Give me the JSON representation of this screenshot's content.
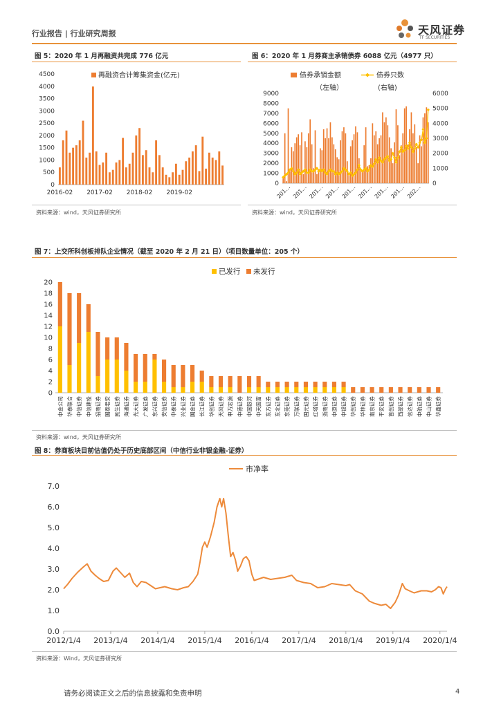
{
  "header": {
    "text": "行业报告 | 行业研究周报"
  },
  "logo": {
    "name": "天风证券",
    "sub": "TF SECURITIES"
  },
  "footer": {
    "disclaimer": "请务必阅读正文之后的信息披露和免责申明",
    "page": "4"
  },
  "colors": {
    "accent": "#e8923a",
    "orange": "#ed7d31",
    "yellow": "#ffc000",
    "line": "#ed8a3a"
  },
  "figures": {
    "fig5": {
      "title": "图 5：2020 年 1 月再融资共完成 776 亿元",
      "source": "资料来源：wind，天风证券研究所"
    },
    "fig6": {
      "title": "图 6：2020 年 1 月券商主承销债券 6088 亿元（4977 只）",
      "source": "资料来源：wind，天风证券研究所"
    },
    "fig7": {
      "title": "图 7：上交所科创板排队企业情况（截至 2020 年 2 月 21 日）（项目数量单位：205 个）",
      "source": "资料来源：wind，天风证券研究所"
    },
    "fig8": {
      "title": "图 8：券商板块目前估值仍处于历史底部区间（中信行业非银金融-证券）",
      "source": "资料来源：Wind，天风证券研究所"
    }
  },
  "chart_data": [
    {
      "id": "fig5",
      "type": "bar",
      "title": "2020 年 1 月再融资共完成 776 亿元",
      "legend": "再融资合计筹集资金(亿元)",
      "ylim": [
        0,
        4500
      ],
      "yticks": [
        "0",
        "500",
        "1000",
        "1500",
        "2000",
        "2500",
        "3000",
        "3500",
        "4000",
        "4500"
      ],
      "xticks": [
        "2016-02",
        "2017-02",
        "2018-02",
        "2019-02"
      ],
      "xtick_index": [
        0,
        12,
        24,
        36
      ],
      "values": [
        700,
        1800,
        2200,
        1300,
        1500,
        1600,
        1800,
        2600,
        1100,
        1300,
        3990,
        1350,
        800,
        900,
        1300,
        500,
        600,
        900,
        1000,
        1900,
        700,
        850,
        1300,
        2000,
        2300,
        1200,
        1400,
        700,
        500,
        1800,
        1200,
        700,
        400,
        300,
        500,
        850,
        400,
        600,
        950,
        1100,
        1350,
        1600,
        550,
        1950,
        650,
        1300,
        1100,
        1000,
        1350,
        776
      ]
    },
    {
      "id": "fig6",
      "type": "bar+line",
      "title": "2020 年 1 月券商主承销债券 6088 亿元（4977 只）",
      "series": [
        {
          "name": "债券承销金额",
          "axis_note": "（左轴）",
          "kind": "bar",
          "values": [
            600,
            5000,
            200,
            7500,
            1200,
            3600,
            3200,
            4000,
            4600,
            4900,
            3800,
            5100,
            900,
            4200,
            3600,
            5000,
            6400,
            3900,
            1500,
            5300,
            900,
            1400,
            3500,
            3300,
            5400,
            4500,
            5500,
            4500,
            6100,
            4600,
            3900,
            3400,
            2600,
            2400,
            4300,
            5200,
            5600,
            5000,
            2200,
            1000,
            3700,
            4300,
            4900,
            5700,
            5100,
            2500,
            1300,
            1200,
            3800,
            5600,
            1700,
            1800,
            2500,
            6000,
            4800,
            5200,
            3900,
            4500,
            4800,
            7100,
            6100,
            6600,
            5800,
            4600,
            3500,
            2000,
            4100,
            7400,
            5800,
            2800,
            3800,
            5000,
            7500,
            7700,
            3900,
            5400,
            7100,
            5000,
            5900,
            3600,
            2000,
            4800,
            3700,
            6600,
            7000,
            7600,
            6100
          ]
        },
        {
          "name": "债券只数",
          "axis_note": "(右轴)",
          "kind": "line",
          "values": [
            400,
            500,
            600,
            700,
            900,
            1000,
            800,
            600,
            700,
            900,
            600,
            700,
            800,
            900,
            700,
            700,
            900,
            800,
            800,
            900,
            1000,
            800,
            900,
            800,
            900,
            700,
            600,
            800,
            900,
            800,
            800,
            600,
            700,
            600,
            700,
            800,
            1000,
            900,
            800,
            600,
            700,
            500,
            600,
            700,
            900,
            1200,
            900,
            800,
            900,
            1000,
            800,
            900,
            1200,
            1100,
            1300,
            1600,
            1400,
            1700,
            1500,
            1400,
            1600,
            1700,
            1800,
            1500,
            1600,
            2000,
            1700,
            1400,
            1700,
            2100,
            2400,
            2100,
            2200,
            2500,
            2300,
            2700,
            2400,
            2100,
            2300,
            2600,
            2400,
            2700,
            2900,
            3600,
            2700,
            3000,
            4900
          ]
        }
      ],
      "left_ylim": [
        0,
        9000
      ],
      "left_yticks": [
        "0",
        "1000",
        "2000",
        "3000",
        "4000",
        "5000",
        "6000",
        "7000",
        "8000",
        "9000"
      ],
      "right_ylim": [
        0,
        6000
      ],
      "right_yticks": [
        "0",
        "1000",
        "2000",
        "3000",
        "4000",
        "5000",
        "6000"
      ],
      "xticks": [
        "201…",
        "201…",
        "201…",
        "201…",
        "201…",
        "201…",
        "201…",
        "201…",
        "202…"
      ]
    },
    {
      "id": "fig7",
      "type": "stacked-bar",
      "title": "上交所科创板排队企业情况",
      "ylim": [
        0,
        20
      ],
      "yticks": [
        "0",
        "2",
        "4",
        "6",
        "8",
        "10",
        "12",
        "14",
        "16",
        "18",
        "20"
      ],
      "categories": [
        "中金公司",
        "华泰联合",
        "中信证券",
        "中信建投",
        "招商证券",
        "国泰君安",
        "民生证券",
        "海通证券",
        "光大证券",
        "广发证券",
        "东兴证券",
        "安信证券",
        "中泰证券",
        "兴业证券",
        "国金证券",
        "长江证券",
        "华创证券",
        "天风证券",
        "申万宏源",
        "中德证券",
        "中国银河",
        "中天国富",
        "东方证券",
        "东北证券",
        "东莞证券",
        "万联证券",
        "国元证券",
        "红塔证券",
        "浙商证券",
        "中原证券",
        "中银证券",
        "华创证券",
        "华林证券",
        "南京证券",
        "平安证券",
        "首创证券",
        "西部证券",
        "信达证券",
        "中航证券",
        "中山证券",
        "华鑫证券"
      ],
      "series": [
        {
          "name": "已发行",
          "color": "#ffc000",
          "values": [
            12,
            5,
            9,
            11,
            3,
            6,
            6,
            4,
            2,
            2,
            6,
            2,
            1,
            1,
            2,
            2,
            1,
            1,
            1,
            0,
            1,
            1,
            1,
            1,
            1,
            1,
            1,
            1,
            1,
            1,
            1,
            0,
            0,
            0,
            0,
            0,
            0,
            0,
            0,
            0,
            0
          ]
        },
        {
          "name": "未发行",
          "color": "#ed7d31",
          "values": [
            8,
            13,
            9,
            5,
            8,
            4,
            4,
            5,
            5,
            5,
            1,
            4,
            4,
            4,
            3,
            2,
            2,
            2,
            2,
            3,
            2,
            2,
            1,
            1,
            1,
            1,
            1,
            1,
            1,
            1,
            1,
            1,
            1,
            1,
            1,
            1,
            1,
            1,
            1,
            1,
            1
          ]
        }
      ]
    },
    {
      "id": "fig8",
      "type": "line",
      "title": "券商板块目前估值仍处于历史底部区间",
      "legend": "市净率",
      "ylim": [
        0,
        7
      ],
      "yticks": [
        "0.0",
        "1.0",
        "2.0",
        "3.0",
        "4.0",
        "5.0",
        "6.0",
        "7.0"
      ],
      "xticks": [
        "2012/1/4",
        "2013/1/4",
        "2014/1/4",
        "2015/1/4",
        "2016/1/4",
        "2017/1/4",
        "2018/1/4",
        "2019/1/4",
        "2020/1/4"
      ],
      "x_start": 2012.0,
      "x_end": 2020.15,
      "points": [
        [
          2012.0,
          2.05
        ],
        [
          2012.08,
          2.25
        ],
        [
          2012.18,
          2.55
        ],
        [
          2012.3,
          2.85
        ],
        [
          2012.42,
          3.1
        ],
        [
          2012.5,
          3.25
        ],
        [
          2012.58,
          2.9
        ],
        [
          2012.67,
          2.7
        ],
        [
          2012.75,
          2.55
        ],
        [
          2012.85,
          2.4
        ],
        [
          2012.95,
          2.45
        ],
        [
          2013.05,
          2.9
        ],
        [
          2013.12,
          3.05
        ],
        [
          2013.2,
          2.85
        ],
        [
          2013.3,
          2.6
        ],
        [
          2013.4,
          2.8
        ],
        [
          2013.48,
          2.35
        ],
        [
          2013.56,
          2.15
        ],
        [
          2013.65,
          2.4
        ],
        [
          2013.75,
          2.35
        ],
        [
          2013.85,
          2.2
        ],
        [
          2013.95,
          2.05
        ],
        [
          2014.05,
          2.1
        ],
        [
          2014.15,
          2.15
        ],
        [
          2014.3,
          2.05
        ],
        [
          2014.42,
          2.0
        ],
        [
          2014.55,
          2.1
        ],
        [
          2014.65,
          2.15
        ],
        [
          2014.75,
          2.4
        ],
        [
          2014.85,
          2.75
        ],
        [
          2014.9,
          3.35
        ],
        [
          2014.95,
          4.05
        ],
        [
          2015.0,
          4.3
        ],
        [
          2015.05,
          4.05
        ],
        [
          2015.12,
          4.55
        ],
        [
          2015.2,
          5.25
        ],
        [
          2015.26,
          6.0
        ],
        [
          2015.32,
          6.4
        ],
        [
          2015.36,
          6.0
        ],
        [
          2015.4,
          6.4
        ],
        [
          2015.45,
          5.7
        ],
        [
          2015.5,
          4.6
        ],
        [
          2015.55,
          3.6
        ],
        [
          2015.6,
          3.8
        ],
        [
          2015.65,
          3.45
        ],
        [
          2015.7,
          2.9
        ],
        [
          2015.76,
          3.15
        ],
        [
          2015.82,
          3.5
        ],
        [
          2015.88,
          3.6
        ],
        [
          2015.94,
          3.4
        ],
        [
          2016.0,
          2.75
        ],
        [
          2016.05,
          2.45
        ],
        [
          2016.12,
          2.5
        ],
        [
          2016.25,
          2.6
        ],
        [
          2016.4,
          2.5
        ],
        [
          2016.55,
          2.55
        ],
        [
          2016.7,
          2.6
        ],
        [
          2016.85,
          2.7
        ],
        [
          2016.95,
          2.45
        ],
        [
          2017.1,
          2.35
        ],
        [
          2017.25,
          2.3
        ],
        [
          2017.4,
          2.1
        ],
        [
          2017.55,
          2.15
        ],
        [
          2017.7,
          2.3
        ],
        [
          2017.85,
          2.25
        ],
        [
          2018.0,
          2.2
        ],
        [
          2018.08,
          2.25
        ],
        [
          2018.2,
          1.95
        ],
        [
          2018.35,
          1.8
        ],
        [
          2018.5,
          1.45
        ],
        [
          2018.6,
          1.35
        ],
        [
          2018.75,
          1.25
        ],
        [
          2018.85,
          1.3
        ],
        [
          2018.95,
          1.1
        ],
        [
          2019.05,
          1.4
        ],
        [
          2019.12,
          1.75
        ],
        [
          2019.2,
          2.3
        ],
        [
          2019.26,
          2.05
        ],
        [
          2019.35,
          1.95
        ],
        [
          2019.45,
          1.85
        ],
        [
          2019.6,
          1.95
        ],
        [
          2019.72,
          1.95
        ],
        [
          2019.82,
          1.9
        ],
        [
          2019.9,
          2.0
        ],
        [
          2019.97,
          2.15
        ],
        [
          2020.02,
          2.1
        ],
        [
          2020.07,
          1.8
        ],
        [
          2020.12,
          2.05
        ],
        [
          2020.15,
          2.15
        ]
      ]
    }
  ]
}
